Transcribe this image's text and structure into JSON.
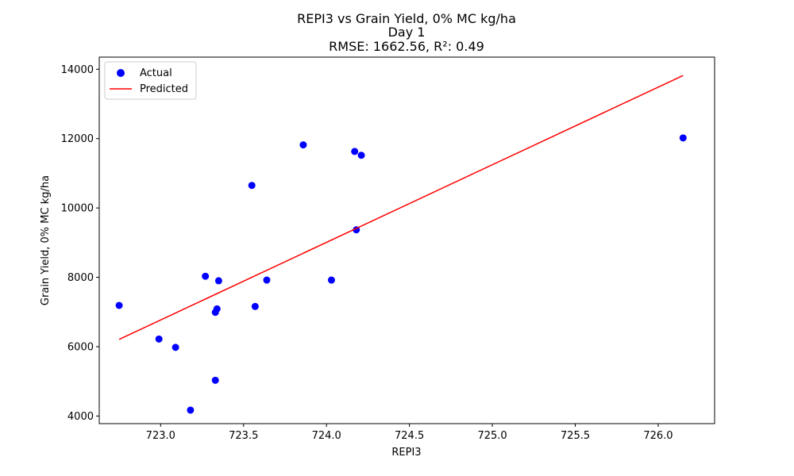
{
  "chart_data": {
    "type": "scatter",
    "title_lines": [
      "REPI3 vs Grain Yield, 0% MC kg/ha",
      "Day 1",
      "RMSE: 1662.56, R²: 0.49"
    ],
    "xlabel": "REPI3",
    "ylabel": "Grain Yield, 0% MC kg/ha",
    "xlim": [
      722.63,
      726.34
    ],
    "ylim": [
      3780,
      14350
    ],
    "xticks": [
      723.0,
      723.5,
      724.0,
      724.5,
      725.0,
      725.5,
      726.0
    ],
    "xtick_labels": [
      "723.0",
      "723.5",
      "724.0",
      "724.5",
      "725.0",
      "725.5",
      "726.0"
    ],
    "yticks": [
      4000,
      6000,
      8000,
      10000,
      12000,
      14000
    ],
    "ytick_labels": [
      "4000",
      "6000",
      "8000",
      "10000",
      "12000",
      "14000"
    ],
    "grid": false,
    "legend_position": "top-left",
    "series": [
      {
        "name": "Actual",
        "kind": "scatter",
        "color": "#0000ff",
        "points": [
          {
            "x": 722.75,
            "y": 7190
          },
          {
            "x": 722.99,
            "y": 6220
          },
          {
            "x": 723.09,
            "y": 5980
          },
          {
            "x": 723.18,
            "y": 4170
          },
          {
            "x": 723.27,
            "y": 8030
          },
          {
            "x": 723.33,
            "y": 5030
          },
          {
            "x": 723.33,
            "y": 6990
          },
          {
            "x": 723.34,
            "y": 7090
          },
          {
            "x": 723.35,
            "y": 7900
          },
          {
            "x": 723.55,
            "y": 10650
          },
          {
            "x": 723.57,
            "y": 7160
          },
          {
            "x": 723.64,
            "y": 7920
          },
          {
            "x": 723.86,
            "y": 11820
          },
          {
            "x": 724.03,
            "y": 7920
          },
          {
            "x": 724.17,
            "y": 11630
          },
          {
            "x": 724.18,
            "y": 9370
          },
          {
            "x": 724.21,
            "y": 11520
          },
          {
            "x": 726.15,
            "y": 12020
          }
        ]
      },
      {
        "name": "Predicted",
        "kind": "line",
        "color": "#ff0000",
        "points": [
          {
            "x": 722.75,
            "y": 6210
          },
          {
            "x": 726.15,
            "y": 13820
          }
        ]
      }
    ]
  }
}
